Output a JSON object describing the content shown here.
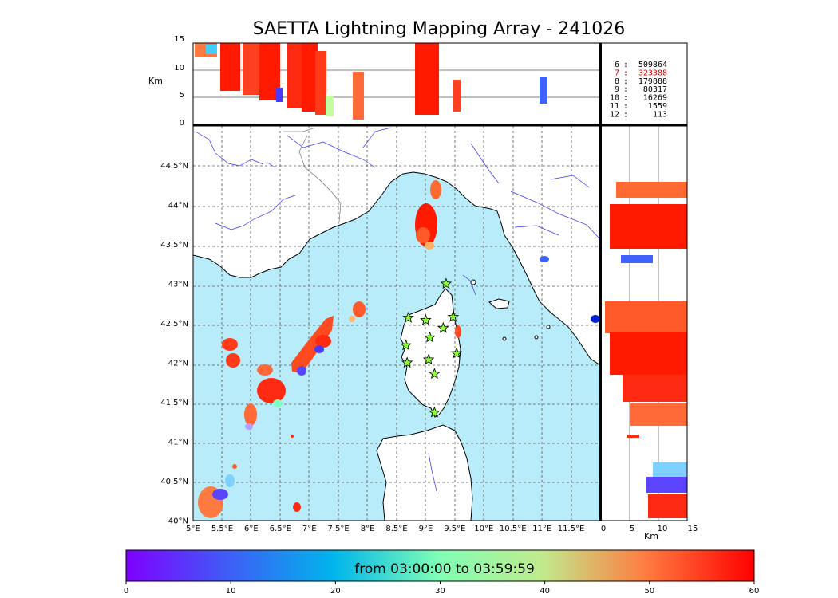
{
  "title": "SAETTA Lightning Mapping Array - 241026",
  "top_panel": {
    "ylabel": "Km",
    "yticks": [
      "15",
      "10",
      "5",
      "0"
    ]
  },
  "right_panel": {
    "xlabel": "Km",
    "xticks": [
      "0",
      "5",
      "10",
      "15"
    ]
  },
  "map": {
    "lon_ticks": [
      "5°E",
      "5.5°E",
      "6°E",
      "6.5°E",
      "7°E",
      "7.5°E",
      "8°E",
      "8.5°E",
      "9°E",
      "9.5°E",
      "10°E",
      "10.5°E",
      "11°E",
      "11.5°E"
    ],
    "lat_ticks": [
      "44.5°N",
      "44°N",
      "43.5°N",
      "43°N",
      "42.5°N",
      "42°N",
      "41.5°N",
      "41°N",
      "40.5°N",
      "40°N"
    ]
  },
  "stats": [
    {
      "station": "6",
      "sep": ":",
      "count": "509864",
      "color": "#000000"
    },
    {
      "station": "7",
      "sep": ":",
      "count": "323388",
      "color": "#e00000"
    },
    {
      "station": "8",
      "sep": ":",
      "count": "179888",
      "color": "#000000"
    },
    {
      "station": "9",
      "sep": ":",
      "count": "80317",
      "color": "#000000"
    },
    {
      "station": "10",
      "sep": ":",
      "count": "16269",
      "color": "#000000"
    },
    {
      "station": "11",
      "sep": ":",
      "count": "1559",
      "color": "#000000"
    },
    {
      "station": "12",
      "sep": ":",
      "count": "113",
      "color": "#000000"
    }
  ],
  "colorbar": {
    "label": "from 03:00:00 to 03:59:59",
    "ticks": [
      "0",
      "10",
      "20",
      "30",
      "40",
      "50",
      "60"
    ]
  },
  "colors": {
    "sea": "#b8ecfb",
    "rivers": "#3333ee",
    "station_star": "#8cff32"
  },
  "stations": [
    {
      "lon": 9.35,
      "lat": 43.0
    },
    {
      "lon": 8.7,
      "lat": 42.57
    },
    {
      "lon": 9.0,
      "lat": 42.54
    },
    {
      "lon": 9.47,
      "lat": 42.58
    },
    {
      "lon": 9.3,
      "lat": 42.44
    },
    {
      "lon": 9.07,
      "lat": 42.32
    },
    {
      "lon": 8.66,
      "lat": 42.22
    },
    {
      "lon": 9.53,
      "lat": 42.12
    },
    {
      "lon": 8.68,
      "lat": 42.0
    },
    {
      "lon": 9.05,
      "lat": 42.04
    },
    {
      "lon": 9.15,
      "lat": 41.86
    },
    {
      "lon": 9.15,
      "lat": 41.37
    }
  ]
}
